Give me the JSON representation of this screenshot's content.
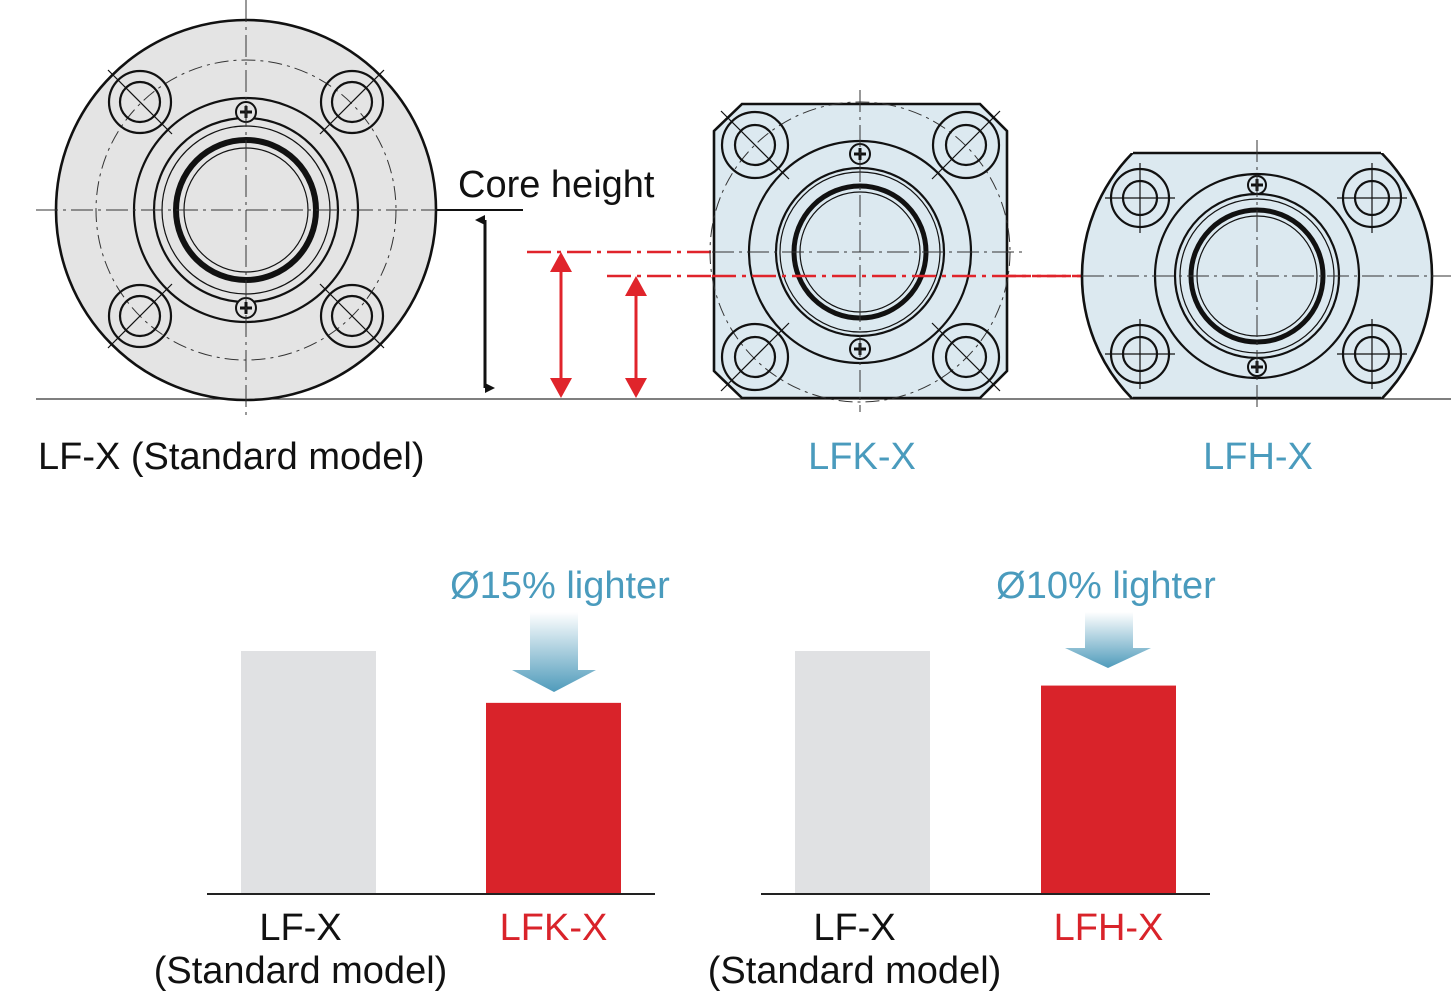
{
  "labels": {
    "core_height": "Core height",
    "lf_x_standard": "LF-X (Standard model)",
    "lfk_x": "LFK-X",
    "lfh_x": "LFH-X"
  },
  "colors": {
    "red": "#d9232a",
    "blue_text": "#4a9bbd",
    "lfx_fill": "#e4e4e4",
    "flange_fill": "#dce9f0",
    "bar_gray": "#e0e1e3"
  },
  "chart_data": [
    {
      "type": "bar",
      "categories": [
        "LF-X (Standard model)",
        "LFK-X"
      ],
      "category_lines": [
        [
          "LF-X",
          "(Standard model)"
        ],
        [
          "LFK-X",
          ""
        ]
      ],
      "values": [
        100,
        85
      ],
      "ylim": [
        30,
        100
      ],
      "annotation": "Ø15% lighter",
      "bar_colors": [
        "#e0e1e3",
        "#d9232a"
      ],
      "label_colors": [
        "#111111",
        "#d9232a"
      ]
    },
    {
      "type": "bar",
      "categories": [
        "LF-X (Standard model)",
        "LFH-X"
      ],
      "category_lines": [
        [
          "LF-X",
          "(Standard model)"
        ],
        [
          "LFH-X",
          ""
        ]
      ],
      "values": [
        100,
        90
      ],
      "ylim": [
        30,
        100
      ],
      "annotation": "Ø10% lighter",
      "bar_colors": [
        "#e0e1e3",
        "#d9232a"
      ],
      "label_colors": [
        "#111111",
        "#d9232a"
      ]
    }
  ]
}
